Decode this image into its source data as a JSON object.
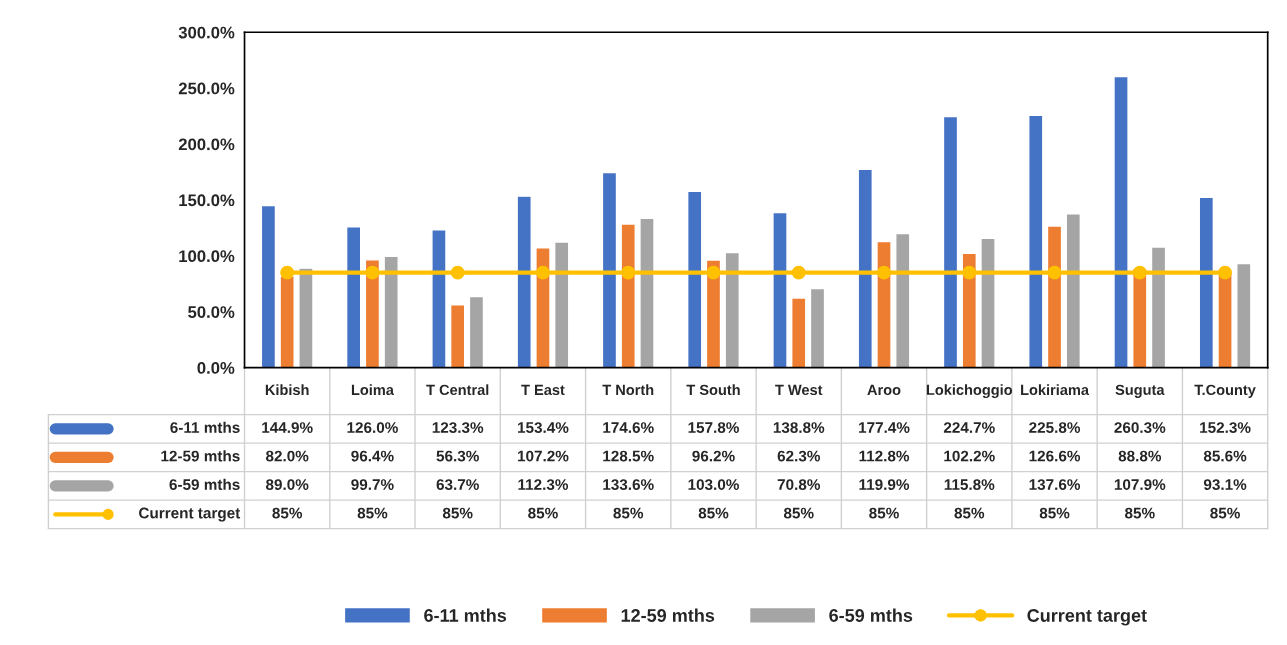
{
  "chart_data": {
    "type": "bar",
    "categories": [
      "Kibish",
      "Loima",
      "T Central",
      "T East",
      "T North",
      "T South",
      "T West",
      "Aroo",
      "Lokichoggio",
      "Lokiriama",
      "Suguta",
      "T.County"
    ],
    "series": [
      {
        "name": "6-11 mths",
        "color": "#4472c4",
        "values": [
          144.9,
          126.0,
          123.3,
          153.4,
          174.6,
          157.8,
          138.8,
          177.4,
          224.7,
          225.8,
          260.3,
          152.3
        ],
        "value_labels": [
          "144.9%",
          "126.0%",
          "123.3%",
          "153.4%",
          "174.6%",
          "157.8%",
          "138.8%",
          "177.4%",
          "224.7%",
          "225.8%",
          "260.3%",
          "152.3%"
        ]
      },
      {
        "name": "12-59 mths",
        "color": "#ed7d31",
        "values": [
          82.0,
          96.4,
          56.3,
          107.2,
          128.5,
          96.2,
          62.3,
          112.8,
          102.2,
          126.6,
          88.8,
          85.6
        ],
        "value_labels": [
          "82.0%",
          "96.4%",
          "56.3%",
          "107.2%",
          "128.5%",
          "96.2%",
          "62.3%",
          "112.8%",
          "102.2%",
          "126.6%",
          "88.8%",
          "85.6%"
        ]
      },
      {
        "name": "6-59 mths",
        "color": "#a5a5a5",
        "values": [
          89.0,
          99.7,
          63.7,
          112.3,
          133.6,
          103.0,
          70.8,
          119.9,
          115.8,
          137.6,
          107.9,
          93.1
        ],
        "value_labels": [
          "89.0%",
          "99.7%",
          "63.7%",
          "112.3%",
          "133.6%",
          "103.0%",
          "70.8%",
          "119.9%",
          "115.8%",
          "137.6%",
          "107.9%",
          "93.1%"
        ]
      },
      {
        "name": "Current target",
        "type": "line",
        "color": "#ffc000",
        "marker": "circle",
        "values": [
          85,
          85,
          85,
          85,
          85,
          85,
          85,
          85,
          85,
          85,
          85,
          85
        ],
        "value_labels": [
          "85%",
          "85%",
          "85%",
          "85%",
          "85%",
          "85%",
          "85%",
          "85%",
          "85%",
          "85%",
          "85%",
          "85%"
        ]
      }
    ],
    "ylim": [
      0,
      300
    ],
    "yticks": [
      {
        "value": 0,
        "label": "0.0%"
      },
      {
        "value": 50,
        "label": "50.0%"
      },
      {
        "value": 100,
        "label": "100.0%"
      },
      {
        "value": 150,
        "label": "150.0%"
      },
      {
        "value": 200,
        "label": "200.0%"
      },
      {
        "value": 250,
        "label": "250.0%"
      },
      {
        "value": 300,
        "label": "300.0%"
      }
    ],
    "grid": false,
    "legend": "bottom"
  }
}
